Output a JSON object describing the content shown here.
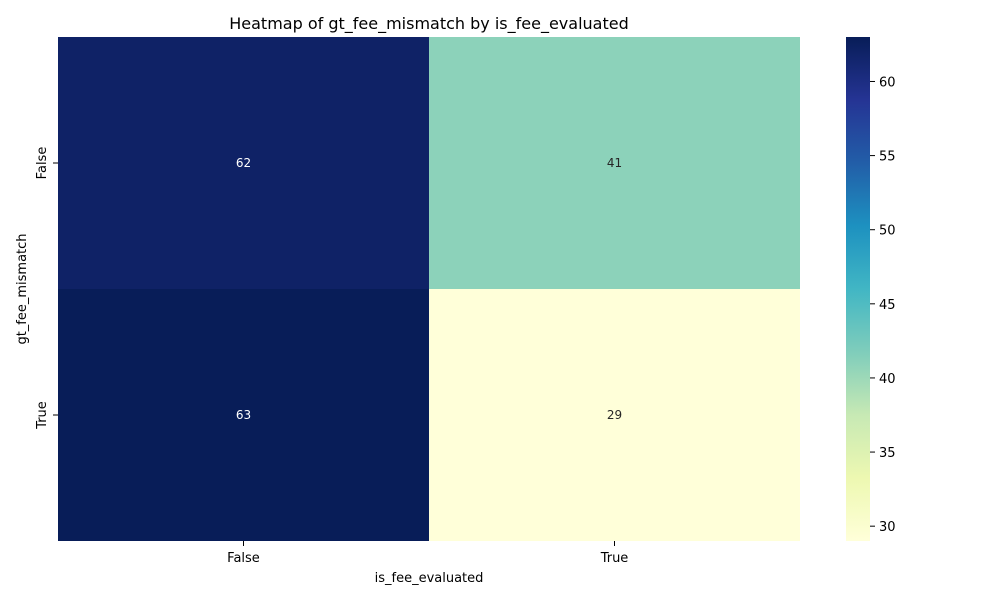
{
  "chart_data": {
    "type": "heatmap",
    "title": "Heatmap of gt_fee_mismatch by is_fee_evaluated",
    "xlabel": "is_fee_evaluated",
    "ylabel": "gt_fee_mismatch",
    "x_categories": [
      "False",
      "True"
    ],
    "y_categories": [
      "False",
      "True"
    ],
    "values": [
      [
        62,
        41
      ],
      [
        63,
        29
      ]
    ],
    "colormap": "YlGnBu",
    "vmin": 29,
    "vmax": 63,
    "colorbar_ticks": [
      30,
      35,
      40,
      45,
      50,
      55,
      60
    ],
    "colorbar_tick_labels": [
      "30",
      "35",
      "40",
      "45",
      "50",
      "55",
      "60"
    ],
    "annotation_colors": {
      "dark_cell": "#ffffff",
      "light_cell": "#262626"
    }
  }
}
